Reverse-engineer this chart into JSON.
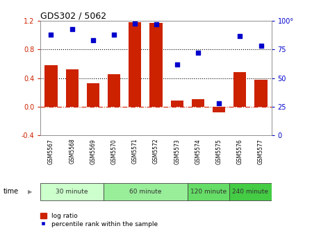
{
  "title": "GDS302 / 5062",
  "samples": [
    "GSM5567",
    "GSM5568",
    "GSM5569",
    "GSM5570",
    "GSM5571",
    "GSM5572",
    "GSM5573",
    "GSM5574",
    "GSM5575",
    "GSM5576",
    "GSM5577"
  ],
  "log_ratio": [
    0.58,
    0.52,
    0.33,
    0.45,
    1.18,
    1.17,
    0.08,
    0.1,
    -0.08,
    0.48,
    0.38
  ],
  "percentile": [
    88,
    93,
    83,
    88,
    98,
    97,
    62,
    72,
    28,
    87,
    78
  ],
  "bar_color": "#cc2200",
  "scatter_color": "#0000cc",
  "ylim_left": [
    -0.4,
    1.2
  ],
  "ylim_right": [
    0,
    100
  ],
  "yticks_left": [
    -0.4,
    0.0,
    0.4,
    0.8,
    1.2
  ],
  "yticks_right": [
    0,
    25,
    50,
    75,
    100
  ],
  "ytick_labels_right": [
    "0",
    "25",
    "50",
    "75",
    "100°"
  ],
  "dotted_lines": [
    0.4,
    0.8
  ],
  "groups": [
    {
      "label": "30 minute",
      "samples": [
        "GSM5567",
        "GSM5568",
        "GSM5569"
      ],
      "color": "#ccffcc"
    },
    {
      "label": "60 minute",
      "samples": [
        "GSM5570",
        "GSM5571",
        "GSM5572",
        "GSM5573"
      ],
      "color": "#99ee99"
    },
    {
      "label": "120 minute",
      "samples": [
        "GSM5574",
        "GSM5575"
      ],
      "color": "#66dd66"
    },
    {
      "label": "240 minute",
      "samples": [
        "GSM5576",
        "GSM5577"
      ],
      "color": "#44cc44"
    }
  ],
  "time_label": "time",
  "legend_log": "log ratio",
  "legend_pct": "percentile rank within the sample",
  "bg_color": "#ffffff",
  "tick_area_color": "#c8c8c8",
  "zero_line_color": "#cc2200",
  "bar_width": 0.6
}
